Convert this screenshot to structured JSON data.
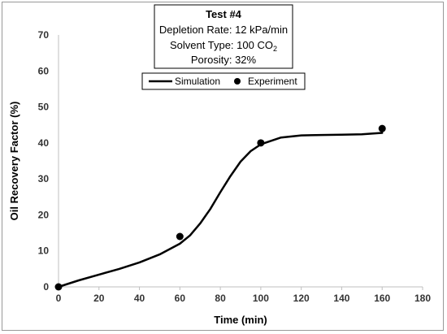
{
  "chart_data": {
    "type": "line",
    "info_box": {
      "title": "Test #4",
      "line1": "Depletion Rate: 12 kPa/min",
      "line2_prefix": "Solvent Type: 100 CO",
      "line2_subscript": "2",
      "line3": "Porosity: 32%"
    },
    "xlabel": "Time (min)",
    "ylabel": "Oil Recovery Factor (%)",
    "xlim": [
      0,
      180
    ],
    "ylim": [
      0,
      70
    ],
    "xticks": [
      0,
      20,
      40,
      60,
      80,
      100,
      120,
      140,
      160,
      180
    ],
    "yticks": [
      0,
      10,
      20,
      30,
      40,
      50,
      60,
      70
    ],
    "grid": false,
    "legend_position": "top-center",
    "series": [
      {
        "name": "Simulation",
        "kind": "line",
        "color": "#000000",
        "x": [
          0,
          10,
          20,
          30,
          40,
          50,
          60,
          65,
          70,
          75,
          80,
          85,
          90,
          95,
          100,
          110,
          120,
          130,
          140,
          150,
          160
        ],
        "y": [
          0,
          1.8,
          3.4,
          5,
          6.8,
          9,
          12,
          14.3,
          17.6,
          21.6,
          26.3,
          30.8,
          34.8,
          37.7,
          39.6,
          41.5,
          42.1,
          42.2,
          42.3,
          42.4,
          42.8
        ]
      },
      {
        "name": "Experiment",
        "kind": "scatter",
        "color": "#000000",
        "x": [
          0,
          60,
          100,
          160
        ],
        "y": [
          0,
          14,
          40,
          44
        ]
      }
    ]
  }
}
